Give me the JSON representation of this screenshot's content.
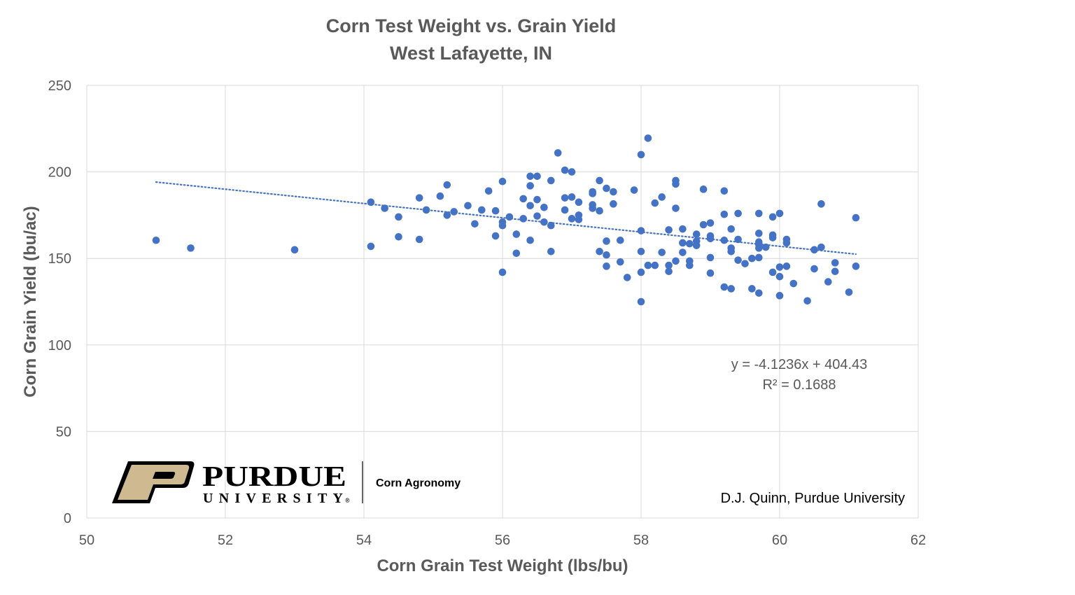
{
  "chart_data": {
    "type": "scatter",
    "title": "Corn Test Weight vs. Grain Yield",
    "subtitle": "West Lafayette, IN",
    "xlabel": "Corn Grain Test Weight (lbs/bu)",
    "ylabel": "Corn Grain Yield (bu/ac)",
    "xlim": [
      50,
      62
    ],
    "ylim": [
      0,
      250
    ],
    "x_ticks": [
      "50",
      "52",
      "54",
      "56",
      "58",
      "60",
      "62"
    ],
    "y_ticks": [
      "0",
      "50",
      "100",
      "150",
      "200",
      "250"
    ],
    "grid": true,
    "marker_color": "#4472c4",
    "trendline": {
      "type": "linear",
      "slope": -4.1236,
      "intercept": 404.43,
      "x_range": [
        51.0,
        61.1
      ],
      "style": "dotted",
      "equation_label": "y = -4.1236x + 404.43",
      "r2_label": "R² = 0.1688"
    },
    "points": [
      [
        51.0,
        160.5
      ],
      [
        51.5,
        156
      ],
      [
        53.0,
        155
      ],
      [
        54.1,
        182.5
      ],
      [
        54.1,
        157
      ],
      [
        54.3,
        179
      ],
      [
        54.5,
        174
      ],
      [
        54.5,
        162.5
      ],
      [
        54.8,
        185
      ],
      [
        54.8,
        161
      ],
      [
        54.9,
        178
      ],
      [
        55.1,
        186
      ],
      [
        55.2,
        192.5
      ],
      [
        55.2,
        175
      ],
      [
        55.3,
        177
      ],
      [
        55.5,
        180.5
      ],
      [
        55.6,
        170
      ],
      [
        55.7,
        178
      ],
      [
        55.8,
        189
      ],
      [
        55.9,
        177.5
      ],
      [
        55.9,
        163
      ],
      [
        56.0,
        194.5
      ],
      [
        56.0,
        171
      ],
      [
        56.0,
        169
      ],
      [
        56.0,
        142
      ],
      [
        56.1,
        174
      ],
      [
        56.2,
        164
      ],
      [
        56.2,
        153
      ],
      [
        56.3,
        184.5
      ],
      [
        56.3,
        173
      ],
      [
        56.4,
        197.5
      ],
      [
        56.4,
        192
      ],
      [
        56.4,
        180.5
      ],
      [
        56.4,
        160.5
      ],
      [
        56.5,
        197.5
      ],
      [
        56.5,
        184
      ],
      [
        56.5,
        174.5
      ],
      [
        56.6,
        179.5
      ],
      [
        56.6,
        171
      ],
      [
        56.7,
        195
      ],
      [
        56.7,
        169
      ],
      [
        56.7,
        154
      ],
      [
        56.8,
        211
      ],
      [
        56.9,
        201
      ],
      [
        56.9,
        185
      ],
      [
        56.9,
        178
      ],
      [
        57.0,
        200
      ],
      [
        57.0,
        185.5
      ],
      [
        57.0,
        173
      ],
      [
        57.1,
        182.5
      ],
      [
        57.1,
        175
      ],
      [
        57.1,
        172.5
      ],
      [
        57.3,
        188.5
      ],
      [
        57.3,
        187.5
      ],
      [
        57.3,
        181
      ],
      [
        57.3,
        179
      ],
      [
        57.4,
        195
      ],
      [
        57.4,
        177.5
      ],
      [
        57.4,
        154
      ],
      [
        57.5,
        190.5
      ],
      [
        57.5,
        160
      ],
      [
        57.5,
        152
      ],
      [
        57.5,
        145.5
      ],
      [
        57.6,
        188.5
      ],
      [
        57.6,
        181.5
      ],
      [
        57.7,
        160.5
      ],
      [
        57.7,
        148
      ],
      [
        57.8,
        139
      ],
      [
        57.9,
        189.5
      ],
      [
        58.0,
        210
      ],
      [
        58.0,
        166
      ],
      [
        58.0,
        154
      ],
      [
        58.0,
        142
      ],
      [
        58.0,
        125
      ],
      [
        58.1,
        219.5
      ],
      [
        58.1,
        146
      ],
      [
        58.2,
        182
      ],
      [
        58.2,
        146
      ],
      [
        58.3,
        185.5
      ],
      [
        58.3,
        153.5
      ],
      [
        58.4,
        166.5
      ],
      [
        58.4,
        146
      ],
      [
        58.4,
        142.5
      ],
      [
        58.5,
        195
      ],
      [
        58.5,
        193
      ],
      [
        58.5,
        179
      ],
      [
        58.5,
        148.5
      ],
      [
        58.6,
        167
      ],
      [
        58.6,
        159
      ],
      [
        58.6,
        153.5
      ],
      [
        58.7,
        158.5
      ],
      [
        58.7,
        148.5
      ],
      [
        58.7,
        146
      ],
      [
        58.8,
        164
      ],
      [
        58.8,
        160
      ],
      [
        58.8,
        157.5
      ],
      [
        58.9,
        190
      ],
      [
        58.9,
        169.5
      ],
      [
        59.0,
        170.5
      ],
      [
        59.0,
        163
      ],
      [
        59.0,
        161.5
      ],
      [
        59.0,
        150.5
      ],
      [
        59.0,
        141.5
      ],
      [
        59.2,
        189
      ],
      [
        59.2,
        175.5
      ],
      [
        59.2,
        160.5
      ],
      [
        59.2,
        133.5
      ],
      [
        59.3,
        167
      ],
      [
        59.3,
        156
      ],
      [
        59.3,
        154
      ],
      [
        59.3,
        132.5
      ],
      [
        59.4,
        176
      ],
      [
        59.4,
        161
      ],
      [
        59.4,
        149
      ],
      [
        59.5,
        147
      ],
      [
        59.6,
        150
      ],
      [
        59.6,
        132.5
      ],
      [
        59.7,
        176
      ],
      [
        59.7,
        164.5
      ],
      [
        59.7,
        159.5
      ],
      [
        59.7,
        158
      ],
      [
        59.7,
        156
      ],
      [
        59.7,
        150.5
      ],
      [
        59.7,
        130
      ],
      [
        59.8,
        156.5
      ],
      [
        59.9,
        174
      ],
      [
        59.9,
        163.5
      ],
      [
        59.9,
        162
      ],
      [
        59.9,
        142
      ],
      [
        60.0,
        176
      ],
      [
        60.0,
        145
      ],
      [
        60.0,
        139.5
      ],
      [
        60.0,
        128.5
      ],
      [
        60.1,
        161
      ],
      [
        60.1,
        159
      ],
      [
        60.1,
        145.5
      ],
      [
        60.2,
        135.5
      ],
      [
        60.4,
        125.5
      ],
      [
        60.5,
        155
      ],
      [
        60.5,
        144
      ],
      [
        60.6,
        181.5
      ],
      [
        60.6,
        156.5
      ],
      [
        60.7,
        136.5
      ],
      [
        60.8,
        147.5
      ],
      [
        60.8,
        142.5
      ],
      [
        61.0,
        130.5
      ],
      [
        61.1,
        173.5
      ],
      [
        61.1,
        145.5
      ]
    ]
  },
  "logo": {
    "wordmark": "PURDUE",
    "subword": "UNIVERSITY",
    "registered": "®",
    "unit": "Corn Agronomy",
    "gold_color": "#cfb991"
  },
  "credit": "D.J. Quinn, Purdue University"
}
